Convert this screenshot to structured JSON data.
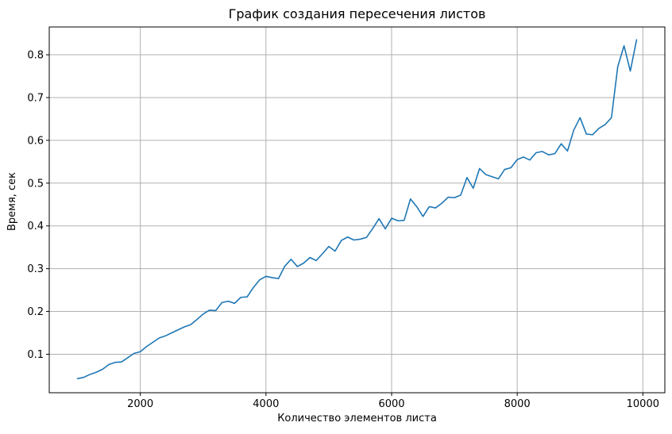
{
  "chart_data": {
    "type": "line",
    "title": "График создания пересечения листов",
    "xlabel": "Количество элементов листа",
    "ylabel": "Время, сек",
    "xlim": [
      550,
      10350
    ],
    "ylim": [
      0.01,
      0.865
    ],
    "xticks": [
      2000,
      4000,
      6000,
      8000,
      10000
    ],
    "yticks": [
      0.1,
      0.2,
      0.3,
      0.4,
      0.5,
      0.6,
      0.7,
      0.8
    ],
    "grid": true,
    "line_color": "#1f77b4",
    "grid_color": "#b0b0b0",
    "series": [
      {
        "x": [
          1000,
          1100,
          1200,
          1300,
          1400,
          1500,
          1600,
          1700,
          1800,
          1900,
          2000,
          2100,
          2200,
          2300,
          2400,
          2500,
          2600,
          2700,
          2800,
          2900,
          3000,
          3100,
          3200,
          3300,
          3400,
          3500,
          3600,
          3700,
          3800,
          3900,
          4000,
          4100,
          4200,
          4300,
          4400,
          4500,
          4600,
          4700,
          4800,
          4900,
          5000,
          5100,
          5200,
          5300,
          5400,
          5500,
          5600,
          5700,
          5800,
          5900,
          6000,
          6100,
          6200,
          6300,
          6400,
          6500,
          6600,
          6700,
          6800,
          6900,
          7000,
          7100,
          7200,
          7300,
          7400,
          7500,
          7600,
          7700,
          7800,
          7900,
          8000,
          8100,
          8200,
          8300,
          8400,
          8500,
          8600,
          8700,
          8800,
          8900,
          9000,
          9100,
          9200,
          9300,
          9400,
          9500,
          9600,
          9700,
          9800,
          9900
        ],
        "values": [
          0.043,
          0.046,
          0.053,
          0.058,
          0.065,
          0.076,
          0.081,
          0.082,
          0.092,
          0.102,
          0.106,
          0.118,
          0.128,
          0.138,
          0.143,
          0.15,
          0.157,
          0.164,
          0.169,
          0.181,
          0.194,
          0.203,
          0.202,
          0.221,
          0.224,
          0.219,
          0.233,
          0.234,
          0.256,
          0.274,
          0.282,
          0.279,
          0.277,
          0.306,
          0.322,
          0.305,
          0.313,
          0.326,
          0.319,
          0.335,
          0.352,
          0.341,
          0.366,
          0.374,
          0.367,
          0.369,
          0.373,
          0.394,
          0.417,
          0.393,
          0.418,
          0.412,
          0.413,
          0.463,
          0.445,
          0.422,
          0.445,
          0.442,
          0.453,
          0.467,
          0.466,
          0.472,
          0.513,
          0.488,
          0.534,
          0.52,
          0.515,
          0.51,
          0.532,
          0.536,
          0.555,
          0.561,
          0.554,
          0.571,
          0.574,
          0.566,
          0.569,
          0.592,
          0.575,
          0.624,
          0.653,
          0.615,
          0.613,
          0.628,
          0.637,
          0.653,
          0.772,
          0.821,
          0.762,
          0.835
        ]
      }
    ]
  }
}
